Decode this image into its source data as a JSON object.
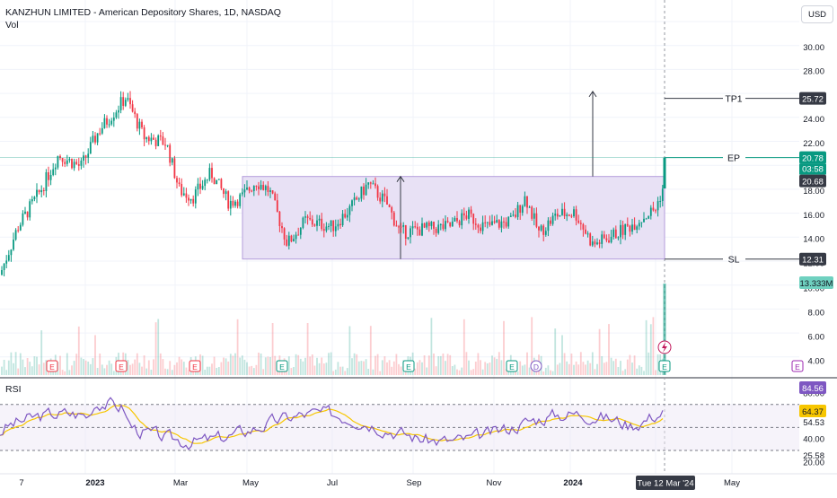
{
  "header": {
    "title": "KANZHUN LIMITED - American Depository Shares, 1D, NASDAQ",
    "volume_label": "Vol",
    "currency_button": "USD"
  },
  "price_axis": {
    "ticks": [
      "30.00",
      "28.00",
      "26.00",
      "24.00",
      "22.00",
      "20.00",
      "18.00",
      "16.00",
      "14.00",
      "12.00",
      "10.00",
      "8.00",
      "6.00",
      "4.00"
    ]
  },
  "rsi_axis": {
    "label": "RSI",
    "ticks": [
      "80.00",
      "54.53",
      "40.00",
      "25.58",
      "20.00"
    ]
  },
  "time_axis": {
    "labels": [
      "7",
      "2023",
      "Mar",
      "May",
      "Jul",
      "Sep",
      "Nov",
      "2024",
      "Mar",
      "May"
    ],
    "crosshair_label": "Tue 12 Mar '24"
  },
  "trade_levels": [
    {
      "label": "TP1",
      "price": "25.72",
      "color": "#363a45"
    },
    {
      "label": "EP",
      "price": "20.78",
      "color": "#089981"
    },
    {
      "label": "SL",
      "price": "12.31",
      "color": "#363a45"
    }
  ],
  "badges": {
    "prev_close": "20.68",
    "countdown": "03:58",
    "volume": "13.333M",
    "rsi_value": "84.56",
    "rsi_ma_value": "64.37"
  },
  "event_markers": [
    {
      "type": "earnings",
      "glyph": "E",
      "color": "#f23645"
    },
    {
      "type": "earnings",
      "glyph": "E",
      "color": "#f23645"
    },
    {
      "type": "earnings",
      "glyph": "E",
      "color": "#f23645"
    },
    {
      "type": "earnings",
      "glyph": "E",
      "color": "#089981"
    },
    {
      "type": "earnings",
      "glyph": "E",
      "color": "#089981"
    },
    {
      "type": "earnings",
      "glyph": "E",
      "color": "#089981"
    },
    {
      "type": "dividend",
      "glyph": "D",
      "color": "#7e57c2"
    },
    {
      "type": "earnings",
      "glyph": "E",
      "color": "#089981"
    },
    {
      "type": "earnings",
      "glyph": "E",
      "color": "#9c27b0"
    }
  ],
  "colors": {
    "up": "#089981",
    "down": "#f23645",
    "range_box": "#e8e1f5",
    "rsi_line": "#7e57c2",
    "rsi_ma": "#f7c600"
  }
}
